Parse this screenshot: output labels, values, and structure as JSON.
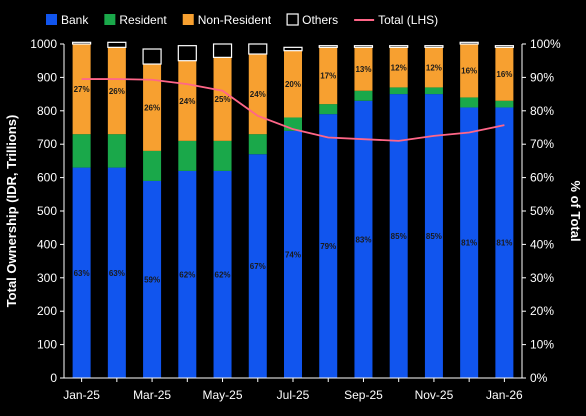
{
  "chart_data": {
    "type": "bar",
    "stacked": true,
    "categories": [
      "Jan-25",
      "Feb-25",
      "Mar-25",
      "Apr-25",
      "May-25",
      "Jun-25",
      "Jul-25",
      "Aug-25",
      "Sep-25",
      "Oct-25",
      "Nov-25",
      "Dec-25",
      "Jan-26"
    ],
    "x_tick_labels": [
      "Jan-25",
      "Mar-25",
      "May-25",
      "Jul-25",
      "Sep-25",
      "Nov-25",
      "Jan-26"
    ],
    "series": [
      {
        "name": "Bank",
        "color": "#1155ee",
        "values": [
          63,
          63,
          59,
          62,
          62,
          67,
          74,
          79,
          83,
          85,
          85,
          81,
          81
        ]
      },
      {
        "name": "Resident",
        "color": "#1aa84a",
        "values": [
          10,
          10,
          9,
          9,
          9,
          6,
          4,
          3,
          3,
          2,
          2,
          3,
          2
        ]
      },
      {
        "name": "Non-Resident",
        "color": "#f7a030",
        "values": [
          27,
          26,
          26,
          24,
          25,
          24,
          20,
          17,
          13,
          12,
          12,
          16,
          16
        ]
      },
      {
        "name": "Others",
        "color": "#000000",
        "values": [
          0.5,
          1.5,
          4.5,
          4.5,
          4,
          3,
          1,
          0.5,
          0.5,
          0.5,
          0.5,
          0.5,
          0.5
        ]
      }
    ],
    "bar_labels": {
      "Bank": [
        "63%",
        "63%",
        "59%",
        "62%",
        "62%",
        "67%",
        "74%",
        "79%",
        "83%",
        "85%",
        "85%",
        "81%",
        "81%"
      ],
      "Non-Resident": [
        "27%",
        "26%",
        "26%",
        "24%",
        "25%",
        "24%",
        "20%",
        "17%",
        "13%",
        "12%",
        "12%",
        "16%",
        "16%"
      ]
    },
    "line": {
      "name": "Total (LHS)",
      "color": "#ff6688",
      "axis": "left",
      "values": [
        895,
        895,
        893,
        880,
        860,
        785,
        745,
        720,
        715,
        710,
        725,
        735,
        757
      ]
    },
    "y_left": {
      "label": "Total Ownership (IDR, Trillions)",
      "ylim": [
        0,
        1000
      ],
      "ticks": [
        "0",
        "100",
        "200",
        "300",
        "400",
        "500",
        "600",
        "700",
        "800",
        "900",
        "1000"
      ]
    },
    "y_right": {
      "label": "% of Total",
      "ylim": [
        0,
        100
      ],
      "ticks": [
        "0%",
        "10%",
        "20%",
        "30%",
        "40%",
        "50%",
        "60%",
        "70%",
        "80%",
        "90%",
        "100%"
      ]
    },
    "legend": {
      "placement": "top",
      "items": [
        {
          "label": "Bank",
          "color": "#1155ee",
          "kind": "box"
        },
        {
          "label": "Resident",
          "color": "#1aa84a",
          "kind": "box"
        },
        {
          "label": "Non-Resident",
          "color": "#f7a030",
          "kind": "box"
        },
        {
          "label": "Others",
          "color": "#000000",
          "kind": "box-outline"
        },
        {
          "label": "Total (LHS)",
          "color": "#ff6688",
          "kind": "line"
        }
      ]
    },
    "grid": false,
    "background": "#000000"
  }
}
